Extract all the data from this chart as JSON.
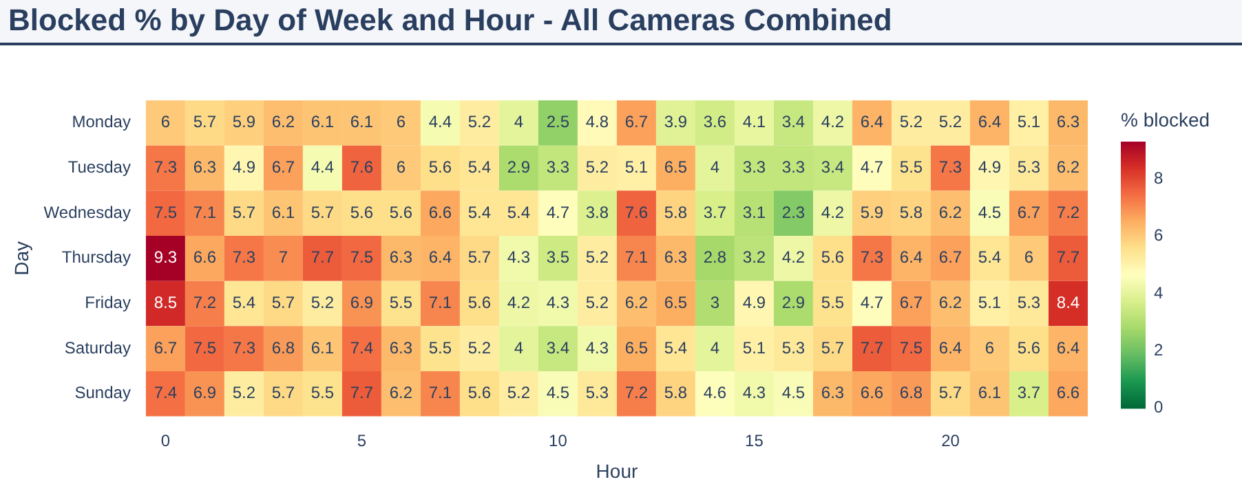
{
  "chart_data": {
    "type": "heatmap",
    "title": "Blocked % by Day of Week and Hour - All Cameras Combined",
    "xlabel": "Hour",
    "ylabel": "Day",
    "clabel": "% blocked",
    "categories": [
      "0",
      null,
      null,
      null,
      null,
      "5",
      null,
      null,
      null,
      null,
      "10",
      null,
      null,
      null,
      null,
      "15",
      null,
      null,
      null,
      null,
      "20",
      null,
      null,
      null
    ],
    "y_categories": [
      "Monday",
      "Tuesday",
      "Wednesday",
      "Thursday",
      "Friday",
      "Saturday",
      "Sunday"
    ],
    "cells": [
      [
        6,
        5.7,
        5.9,
        6.2,
        6.1,
        6.1,
        6,
        4.4,
        5.2,
        4,
        2.5,
        4.8,
        6.7,
        3.9,
        3.6,
        4.1,
        3.4,
        4.2,
        6.4,
        5.2,
        5.2,
        6.4,
        5.1,
        6.3
      ],
      [
        7.3,
        6.3,
        4.9,
        6.7,
        4.4,
        7.6,
        6,
        5.6,
        5.4,
        2.9,
        3.3,
        5.2,
        5.1,
        6.5,
        4,
        3.3,
        3.3,
        3.4,
        4.7,
        5.5,
        7.3,
        4.9,
        5.3,
        6.2
      ],
      [
        7.5,
        7.1,
        5.7,
        6.1,
        5.7,
        5.6,
        5.6,
        6.6,
        5.4,
        5.4,
        4.7,
        3.8,
        7.6,
        5.8,
        3.7,
        3.1,
        2.3,
        4.2,
        5.9,
        5.8,
        6.2,
        4.5,
        6.7,
        7.2
      ],
      [
        9.3,
        6.6,
        7.3,
        7,
        7.7,
        7.5,
        6.3,
        6.4,
        5.7,
        4.3,
        3.5,
        5.2,
        7.1,
        6.3,
        2.8,
        3.2,
        4.2,
        5.6,
        7.3,
        6.4,
        6.7,
        5.4,
        6,
        7.7
      ],
      [
        8.5,
        7.2,
        5.4,
        5.7,
        5.2,
        6.9,
        5.5,
        7.1,
        5.6,
        4.2,
        4.3,
        5.2,
        6.2,
        6.5,
        3,
        4.9,
        2.9,
        5.5,
        4.7,
        6.7,
        6.2,
        5.1,
        5.3,
        8.4
      ],
      [
        6.7,
        7.5,
        7.3,
        6.8,
        6.1,
        7.4,
        6.3,
        5.5,
        5.2,
        4,
        3.4,
        4.3,
        6.5,
        5.4,
        4,
        5.1,
        5.3,
        5.7,
        7.7,
        7.5,
        6.4,
        6,
        5.6,
        6.4
      ],
      [
        7.4,
        6.9,
        5.2,
        5.7,
        5.5,
        7.7,
        6.2,
        7.1,
        5.6,
        5.2,
        4.5,
        5.3,
        7.2,
        5.8,
        4.6,
        4.3,
        4.5,
        6.3,
        6.6,
        6.8,
        5.7,
        6.1,
        3.7,
        6.6
      ]
    ],
    "clim": [
      0,
      9.3
    ],
    "cticks": [
      0,
      2,
      4,
      6,
      8
    ],
    "data_labels": true
  }
}
